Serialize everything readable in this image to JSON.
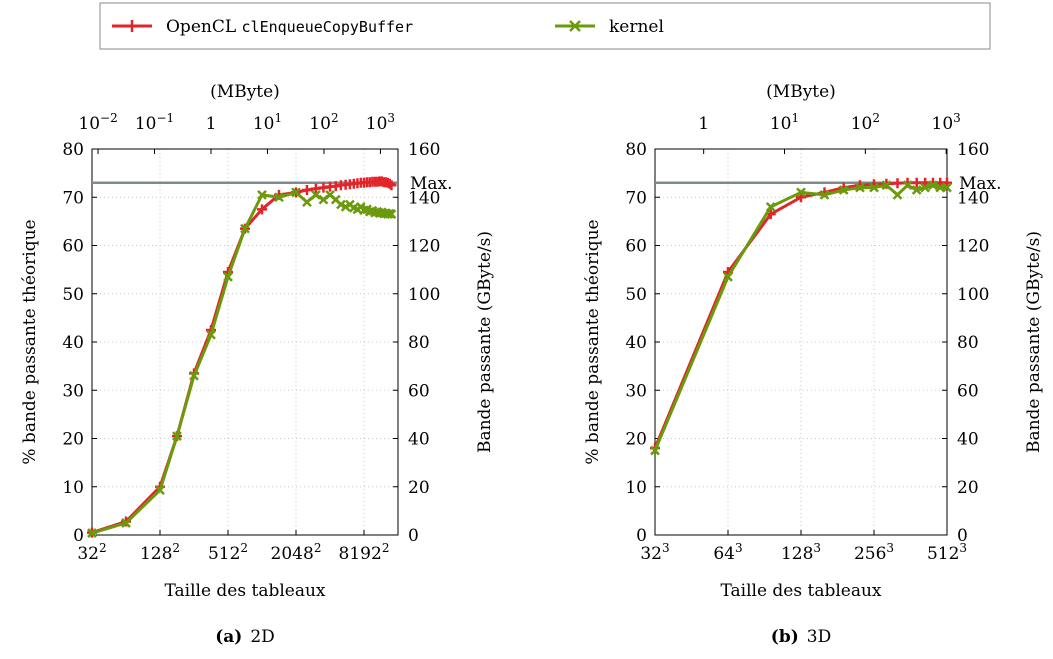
{
  "legend": {
    "entries": [
      {
        "prefix": "OpenCL ",
        "code": "clEnqueueCopyBuffer",
        "color": "#e3242b",
        "marker": "plus"
      },
      {
        "prefix": "kernel",
        "code": "",
        "color": "#6b9a0d",
        "marker": "cross"
      }
    ]
  },
  "max_label": "Max.",
  "max_line_color": "#7f8c8d",
  "chart_data": [
    {
      "type": "line",
      "caption_tag": "(a)",
      "caption_text": "2D",
      "xlabel": "Taille des tableaux",
      "ylabel": "% bande passante théorique",
      "ylabel_right": "Bande passante (GByte/s)",
      "xlabel_top": "(MByte)",
      "x_scale": "log2",
      "x_unit": "array side length",
      "xlim": [
        32,
        16384
      ],
      "ylim": [
        0,
        80
      ],
      "y_right_lim": [
        0,
        160
      ],
      "max_line_percent": 73,
      "x_ticks": [
        {
          "base": "32",
          "exp": "2",
          "value": 32
        },
        {
          "base": "128",
          "exp": "2",
          "value": 128
        },
        {
          "base": "512",
          "exp": "2",
          "value": 512
        },
        {
          "base": "2048",
          "exp": "2",
          "value": 2048
        },
        {
          "base": "8192",
          "exp": "2",
          "value": 8192
        }
      ],
      "x_top_ticks": [
        {
          "base": "10",
          "exp": "−2",
          "value": 0.01
        },
        {
          "base": "10",
          "exp": "−1",
          "value": 0.1
        },
        {
          "base": "1",
          "exp": "",
          "value": 1
        },
        {
          "base": "10",
          "exp": "1",
          "value": 10
        },
        {
          "base": "10",
          "exp": "2",
          "value": 100
        },
        {
          "base": "10",
          "exp": "3",
          "value": 1000
        }
      ],
      "y_ticks": [
        0,
        10,
        20,
        30,
        40,
        50,
        60,
        70,
        80
      ],
      "y_right_ticks": [
        0,
        20,
        40,
        60,
        80,
        100,
        120,
        140,
        160
      ],
      "series": [
        {
          "name": "OpenCL clEnqueueCopyBuffer",
          "x": [
            32,
            64,
            128,
            181,
            256,
            362,
            512,
            724,
            1024,
            1448,
            2048,
            2560,
            3072,
            3584,
            4096,
            4608,
            5120,
            5632,
            6144,
            6656,
            7168,
            7680,
            8192,
            8704,
            9216,
            9728,
            10240,
            10752,
            11264,
            11776,
            12288,
            12800,
            13312,
            13824,
            14336
          ],
          "y": [
            0.5,
            2.8,
            10,
            20.5,
            33.5,
            42.5,
            54.5,
            63.5,
            67.5,
            70.5,
            71,
            71.5,
            71.8,
            72,
            72.2,
            72.3,
            72.5,
            72.6,
            72.7,
            72.8,
            72.9,
            73,
            73,
            73.1,
            73.1,
            73.2,
            73.2,
            73.2,
            73.3,
            73.3,
            73.1,
            73.1,
            73,
            72.8,
            72.5
          ]
        },
        {
          "name": "kernel",
          "x": [
            32,
            64,
            128,
            181,
            256,
            362,
            512,
            724,
            1024,
            1448,
            2048,
            2560,
            3072,
            3584,
            4096,
            4608,
            5120,
            5632,
            6144,
            6656,
            7168,
            7680,
            8192,
            8704,
            9216,
            9728,
            10240,
            10752,
            11264,
            11776,
            12288,
            12800,
            13312,
            13824,
            14336
          ],
          "y": [
            0.4,
            2.5,
            9.3,
            20.5,
            33,
            41.5,
            53.5,
            63.5,
            70.5,
            70,
            71,
            69,
            70.5,
            69.5,
            70.5,
            69.5,
            68.5,
            68,
            68.5,
            67.8,
            67.5,
            68,
            67.3,
            67.5,
            67,
            67.2,
            66.8,
            67,
            66.7,
            66.9,
            66.6,
            66.7,
            66.5,
            66.6,
            66.5
          ]
        }
      ]
    },
    {
      "type": "line",
      "caption_tag": "(b)",
      "caption_text": "3D",
      "xlabel": "Taille des tableaux",
      "ylabel": "% bande passante théorique",
      "ylabel_right": "Bande passante (GByte/s)",
      "xlabel_top": "(MByte)",
      "x_scale": "log2",
      "x_unit": "array side length",
      "xlim": [
        32,
        512
      ],
      "ylim": [
        0,
        80
      ],
      "y_right_lim": [
        0,
        160
      ],
      "max_line_percent": 73,
      "x_ticks": [
        {
          "base": "32",
          "exp": "3",
          "value": 32
        },
        {
          "base": "64",
          "exp": "3",
          "value": 64
        },
        {
          "base": "128",
          "exp": "3",
          "value": 128
        },
        {
          "base": "256",
          "exp": "3",
          "value": 256
        },
        {
          "base": "512",
          "exp": "3",
          "value": 512
        }
      ],
      "x_top_ticks": [
        {
          "base": "1",
          "exp": "",
          "value": 1
        },
        {
          "base": "10",
          "exp": "1",
          "value": 10
        },
        {
          "base": "10",
          "exp": "2",
          "value": 100
        },
        {
          "base": "10",
          "exp": "3",
          "value": 1000
        }
      ],
      "y_ticks": [
        0,
        10,
        20,
        30,
        40,
        50,
        60,
        70,
        80
      ],
      "y_right_ticks": [
        0,
        20,
        40,
        60,
        80,
        100,
        120,
        140,
        160
      ],
      "series": [
        {
          "name": "OpenCL clEnqueueCopyBuffer",
          "x": [
            32,
            64,
            96,
            128,
            160,
            192,
            224,
            256,
            288,
            320,
            352,
            384,
            416,
            448,
            480,
            512
          ],
          "y": [
            18,
            54.5,
            66.5,
            70,
            71,
            72,
            72.5,
            72.7,
            72.8,
            72.9,
            73,
            73,
            73,
            73,
            73,
            73
          ]
        },
        {
          "name": "kernel",
          "x": [
            32,
            64,
            96,
            128,
            160,
            192,
            224,
            256,
            288,
            320,
            352,
            384,
            416,
            448,
            480,
            512
          ],
          "y": [
            17.5,
            53.5,
            68,
            71,
            70.5,
            71.5,
            72,
            72,
            72.5,
            70.5,
            72.5,
            71.5,
            72,
            72.5,
            72,
            72
          ]
        }
      ]
    }
  ]
}
